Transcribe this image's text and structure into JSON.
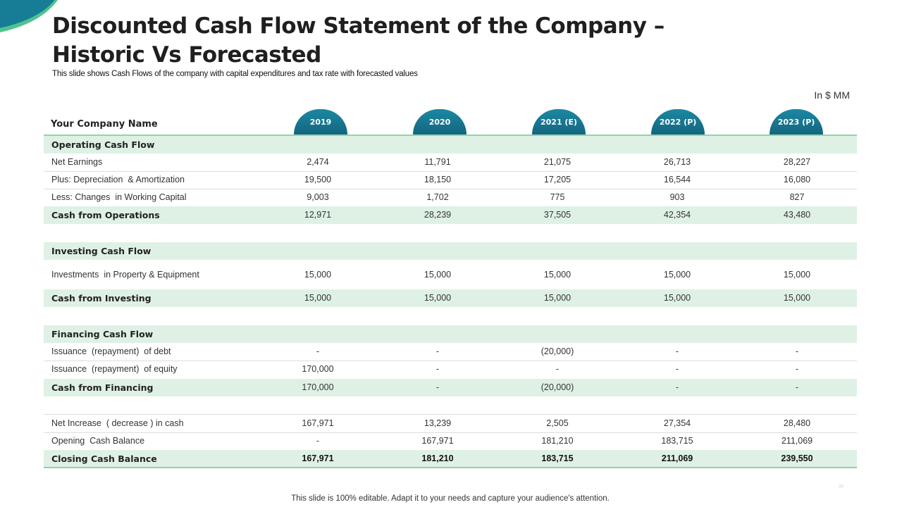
{
  "title": "Discounted Cash Flow Statement of the Company – Historic Vs Forecasted",
  "subtitle": "This slide shows Cash Flows of the company with capital expenditures and tax rate with forecasted values",
  "unit_label": "In $ MM",
  "company_label": "Your Company Name",
  "years": [
    "2019",
    "2020",
    "2021 (E)",
    "2022 (P)",
    "2023 (P)"
  ],
  "rows": [
    {
      "label": "Operating Cash Flow",
      "values": []
    },
    {
      "label": "Net Earnings",
      "values": [
        "2,474",
        "11,791",
        "21,075",
        "26,713",
        "28,227"
      ]
    },
    {
      "label": "Plus: Depreciation  & Amortization",
      "values": [
        "19,500",
        "18,150",
        "17,205",
        "16,544",
        "16,080"
      ]
    },
    {
      "label": "Less: Changes  in Working Capital",
      "values": [
        "9,003",
        "1,702",
        "775",
        "903",
        "827"
      ]
    },
    {
      "label": "Cash from Operations",
      "values": [
        "12,971",
        "28,239",
        "37,505",
        "42,354",
        "43,480"
      ]
    },
    {
      "label": "Investing Cash Flow",
      "values": []
    },
    {
      "label": "Investments  in Property & Equipment",
      "values": [
        "15,000",
        "15,000",
        "15,000",
        "15,000",
        "15,000"
      ]
    },
    {
      "label": "Cash from Investing",
      "values": [
        "15,000",
        "15,000",
        "15,000",
        "15,000",
        "15,000"
      ]
    },
    {
      "label": "Financing Cash Flow",
      "values": []
    },
    {
      "label": "Issuance  (repayment)  of debt",
      "values": [
        "-",
        "-",
        "(20,000)",
        "-",
        "-"
      ]
    },
    {
      "label": "Issuance  (repayment)  of equity",
      "values": [
        "170,000",
        "-",
        "-",
        "-",
        "-"
      ]
    },
    {
      "label": "Cash from Financing",
      "values": [
        "170,000",
        "-",
        "(20,000)",
        "-",
        "-"
      ]
    },
    {
      "label": "Net Increase  ( decrease ) in cash",
      "values": [
        "167,971",
        "13,239",
        "2,505",
        "27,354",
        "28,480"
      ]
    },
    {
      "label": "Opening  Cash Balance",
      "values": [
        "-",
        "167,971",
        "181,210",
        "183,715",
        "211,069"
      ]
    },
    {
      "label": "Closing Cash Balance",
      "values": [
        "167,971",
        "181,210",
        "183,715",
        "211,069",
        "239,550"
      ]
    }
  ],
  "footer": "This slide is 100% editable. Adapt it to your needs and capture your audience's attention.",
  "colors": {
    "accent_teal": "#1a7f9c",
    "row_green": "#dff1e5",
    "rule_green": "#8fd4a8"
  }
}
